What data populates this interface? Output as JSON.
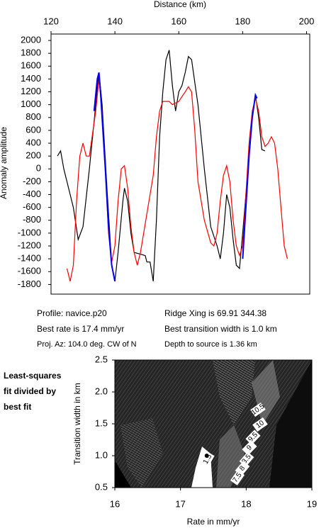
{
  "chart_data": [
    {
      "type": "line",
      "xlabel": "Distance (km)",
      "ylabel": "Anomaly amplitude",
      "xlim": [
        120,
        201
      ],
      "ylim": [
        -1950,
        2100
      ],
      "xticks": [
        120,
        140,
        160,
        180,
        200
      ],
      "yticks": [
        -1800,
        -1600,
        -1400,
        -1200,
        -1000,
        -800,
        -600,
        -400,
        -200,
        0,
        200,
        400,
        600,
        800,
        1000,
        1200,
        1400,
        1600,
        1800,
        2000
      ],
      "series": [
        {
          "color": "#000000",
          "x": [
            122,
            123,
            124,
            125,
            127,
            128.5,
            130,
            132,
            134,
            135,
            136,
            137.5,
            139,
            140,
            141,
            142.5,
            143,
            144,
            145,
            146,
            149.5,
            150,
            151,
            152,
            153,
            154,
            155,
            156,
            157,
            158,
            159,
            160,
            161,
            162,
            163,
            164,
            166,
            168,
            170,
            172,
            173,
            174,
            175,
            176,
            177,
            178,
            179,
            180,
            181,
            182,
            183,
            184,
            185,
            186,
            187
          ],
          "values": [
            200,
            280,
            0,
            -200,
            -600,
            -1100,
            -900,
            0,
            1000,
            1500,
            1000,
            -300,
            -1500,
            -1750,
            -1300,
            -500,
            -300,
            -500,
            -1000,
            -1300,
            -1350,
            -1450,
            -1450,
            -1750,
            -800,
            500,
            1200,
            1700,
            1850,
            1300,
            900,
            1200,
            1300,
            1500,
            1750,
            1700,
            1000,
            0,
            -900,
            -1200,
            -1400,
            -1000,
            -400,
            -600,
            -1100,
            -1500,
            -1550,
            -1000,
            -400,
            200,
            800,
            1150,
            800,
            300,
            280
          ]
        },
        {
          "color": "#ff0000",
          "x": [
            125,
            126,
            127,
            128,
            129,
            130,
            131,
            132,
            134,
            135,
            136,
            137,
            138,
            139,
            140,
            141,
            142,
            143,
            144,
            145,
            146,
            147,
            148,
            150,
            152,
            153,
            154,
            155,
            157,
            158,
            160,
            162,
            163,
            164,
            165,
            166,
            168,
            170,
            171,
            172,
            173,
            174,
            175,
            176,
            177,
            178,
            179,
            180,
            181,
            182,
            183,
            184,
            185,
            186,
            187,
            188,
            189,
            190,
            191,
            192,
            193,
            194
          ],
          "values": [
            -1550,
            -1750,
            -1500,
            -500,
            200,
            400,
            200,
            200,
            900,
            1400,
            900,
            0,
            -1000,
            -1450,
            -1200,
            -500,
            0,
            50,
            -300,
            -900,
            -1300,
            -1500,
            -1300,
            -700,
            -100,
            500,
            900,
            1050,
            1050,
            1000,
            1050,
            1200,
            1280,
            1200,
            600,
            -200,
            -800,
            -1150,
            -1200,
            -1000,
            -500,
            -100,
            50,
            -200,
            -800,
            -1200,
            -1350,
            -1200,
            -400,
            400,
            900,
            1100,
            900,
            500,
            350,
            400,
            500,
            400,
            0,
            -600,
            -1200,
            -1400
          ]
        },
        {
          "color": "#0000ff",
          "x": [
            133.5,
            134.5,
            135,
            135.5,
            137,
            138,
            139,
            140,
            160,
            180,
            181,
            182,
            183,
            184,
            184.5
          ],
          "values": [
            900,
            1400,
            1500,
            1200,
            0,
            -900,
            -1500,
            -1750,
            null,
            -1400,
            -600,
            200,
            800,
            1150,
            1100
          ]
        }
      ]
    },
    {
      "type": "contour",
      "xlabel": "Rate in mm/yr",
      "ylabel": "Transition width in km",
      "xlim": [
        16,
        19
      ],
      "ylim": [
        0.5,
        2.5
      ],
      "xticks": [
        16,
        17,
        18,
        19
      ],
      "yticks": [
        {
          "value": 0.5,
          "label": "0.5"
        },
        {
          "value": 1,
          "label": "1.0"
        },
        {
          "value": 1.5,
          "label": "1.5"
        },
        {
          "value": 2,
          "label": "2.0"
        },
        {
          "value": 2.5,
          "label": "2.5"
        }
      ],
      "contour_labels": [
        "10.5",
        "10",
        "9.5",
        "9",
        "8.5",
        "8",
        "7.5",
        "1.5"
      ],
      "best_fit": {
        "x": 17.4,
        "y": 1.0
      },
      "side_label": [
        "Least-squares",
        "fit divided by",
        "best fit"
      ]
    }
  ],
  "info": {
    "profile": "Profile: navice.p20",
    "ridge": "Ridge Xing is 69.91 344.38",
    "rate": "Best rate is 17.4 mm/yr",
    "width": "Best transition width is 1.0 km",
    "azimuth": "Proj. Az: 104.0 deg. CW of N",
    "depth": "Depth to source is   1.36 km"
  }
}
